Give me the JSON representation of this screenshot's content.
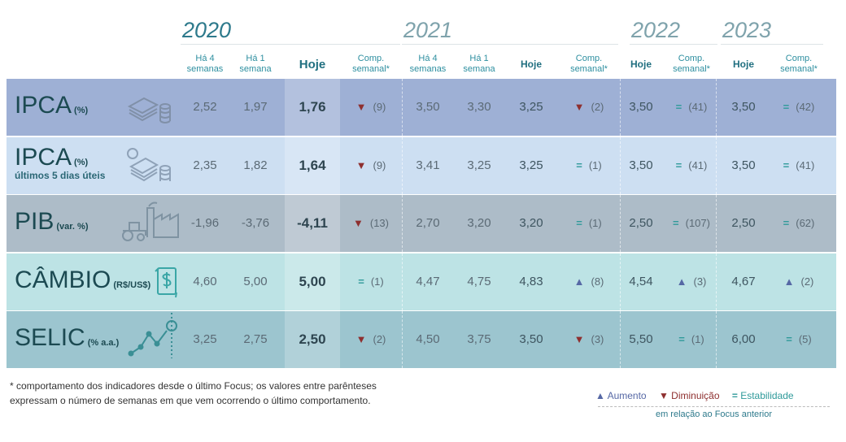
{
  "years": [
    "2020",
    "2021",
    "2022",
    "2023"
  ],
  "headers": {
    "ha4": "Há 4 semanas",
    "ha1": "Há 1 semana",
    "hoje": "Hoje",
    "comp": "Comp. semanal*"
  },
  "colors": {
    "ipca": "#9eb0d5",
    "ipca5": "#cddff2",
    "pib": "#adbcc8",
    "cambio": "#bde3e5",
    "selic": "#9cc5cf",
    "down": "#8e2f2f",
    "up": "#5668a5",
    "stable": "#2f9a9a"
  },
  "rows": [
    {
      "name": "IPCA",
      "unit": "(%)",
      "sub": "",
      "icon": "money-stack-icon",
      "color": "#9eb0d5",
      "v2020": [
        "2,52",
        "1,97",
        "1,76"
      ],
      "c2020": {
        "trend": "down",
        "n": "(9)"
      },
      "v2021": [
        "3,50",
        "3,30",
        "3,25"
      ],
      "c2021": {
        "trend": "down",
        "n": "(2)"
      },
      "v2022": "3,50",
      "c2022": {
        "trend": "stable",
        "n": "(41)"
      },
      "v2023": "3,50",
      "c2023": {
        "trend": "stable",
        "n": "(42)"
      }
    },
    {
      "name": "IPCA",
      "unit": "(%)",
      "sub": "últimos 5 dias úteis",
      "icon": "money-stack-5-icon",
      "color": "#cddff2",
      "v2020": [
        "2,35",
        "1,82",
        "1,64"
      ],
      "c2020": {
        "trend": "down",
        "n": "(9)"
      },
      "v2021": [
        "3,41",
        "3,25",
        "3,25"
      ],
      "c2021": {
        "trend": "stable",
        "n": "(1)"
      },
      "v2022": "3,50",
      "c2022": {
        "trend": "stable",
        "n": "(41)"
      },
      "v2023": "3,50",
      "c2023": {
        "trend": "stable",
        "n": "(41)"
      }
    },
    {
      "name": "PIB",
      "unit": "(var. %)",
      "sub": "",
      "icon": "factory-tractor-icon",
      "color": "#adbcc8",
      "v2020": [
        "-1,96",
        "-3,76",
        "-4,11"
      ],
      "c2020": {
        "trend": "down",
        "n": "(13)"
      },
      "v2021": [
        "2,70",
        "3,20",
        "3,20"
      ],
      "c2021": {
        "trend": "stable",
        "n": "(1)"
      },
      "v2022": "2,50",
      "c2022": {
        "trend": "stable",
        "n": "(107)"
      },
      "v2023": "2,50",
      "c2023": {
        "trend": "stable",
        "n": "(62)"
      }
    },
    {
      "name": "CÂMBIO",
      "unit": "(R$/US$)",
      "sub": "",
      "icon": "currency-exchange-icon",
      "color": "#bde3e5",
      "v2020": [
        "4,60",
        "5,00",
        "5,00"
      ],
      "c2020": {
        "trend": "stable",
        "n": "(1)"
      },
      "v2021": [
        "4,47",
        "4,75",
        "4,83"
      ],
      "c2021": {
        "trend": "up",
        "n": "(8)"
      },
      "v2022": "4,54",
      "c2022": {
        "trend": "up",
        "n": "(3)"
      },
      "v2023": "4,67",
      "c2023": {
        "trend": "up",
        "n": "(2)"
      }
    },
    {
      "name": "SELIC",
      "unit": "(% a.a.)",
      "sub": "",
      "icon": "rate-chart-icon",
      "color": "#9cc5cf",
      "v2020": [
        "3,25",
        "2,75",
        "2,50"
      ],
      "c2020": {
        "trend": "down",
        "n": "(2)"
      },
      "v2021": [
        "4,50",
        "3,75",
        "3,50"
      ],
      "c2021": {
        "trend": "down",
        "n": "(3)"
      },
      "v2022": "5,50",
      "c2022": {
        "trend": "stable",
        "n": "(1)"
      },
      "v2023": "6,00",
      "c2023": {
        "trend": "stable",
        "n": "(5)"
      }
    }
  ],
  "footnote": "* comportamento dos indicadores desde o último Focus; os valores entre parênteses expressam o número de semanas em que vem ocorrendo o último comportamento.",
  "legend": {
    "up": "Aumento",
    "down": "Diminuição",
    "stable": "Estabilidade",
    "caption": "em relação ao Focus anterior"
  }
}
